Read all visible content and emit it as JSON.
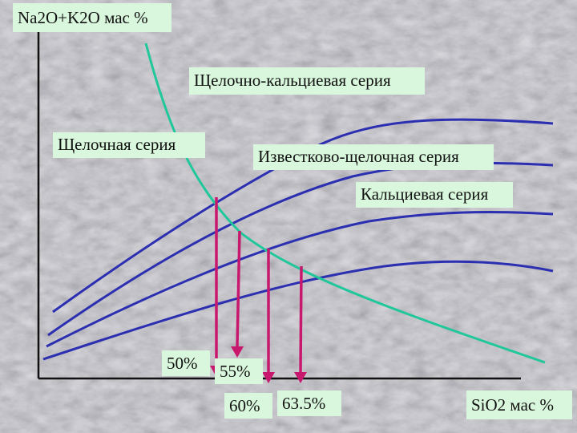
{
  "colors": {
    "background": "#c9c9cc",
    "label_background": "#d9f7dc",
    "series_curve": "#2b2fb0",
    "boundary_curve": "#1fc79a",
    "drop_arrow": "#c8186e",
    "axis": "#111111"
  },
  "axes": {
    "y_title": "Na2O+K2O мас %",
    "x_title": "SiO2 мас %"
  },
  "series_labels": {
    "alkaline_calcic": "Щелочно-кальциевая серия",
    "alkaline": "Щелочная серия",
    "calc_alkaline": "Известково-щелочная серия",
    "calcic": "Кальциевая серия"
  },
  "intersections": {
    "p50": "50%",
    "p55": "55%",
    "p60": "60%",
    "p635": "63.5%"
  }
}
